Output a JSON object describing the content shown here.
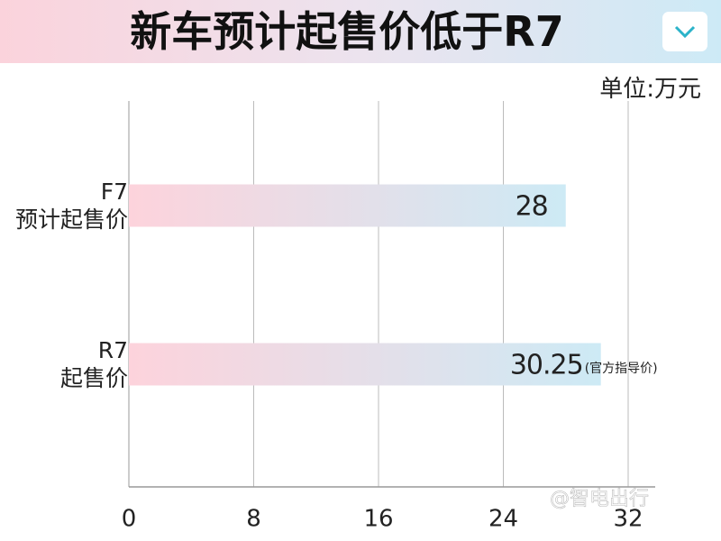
{
  "chart_data": {
    "type": "bar",
    "orientation": "horizontal",
    "title": "新车预计起售价低于R7",
    "unit": "单位:万元",
    "categories": [
      "F7\n预计起售价",
      "R7\n起售价"
    ],
    "values": [
      28,
      30.25
    ],
    "annotation": "(官方指导价)",
    "colors": [
      "#fdd3dc",
      "#cdeaf5"
    ],
    "xlim": [
      0,
      32
    ],
    "xticks": [
      0,
      8,
      16,
      24,
      32
    ],
    "grid": true,
    "watermark": "@智电出行"
  }
}
